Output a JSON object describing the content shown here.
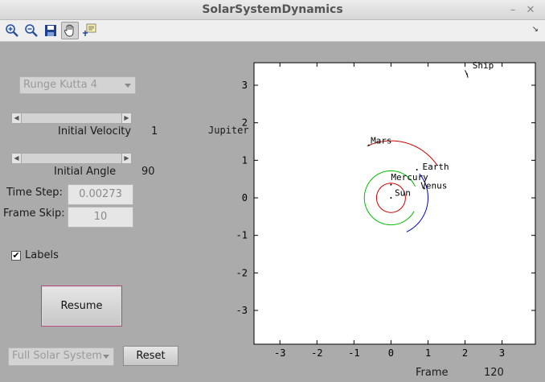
{
  "window": {
    "title": "SolarSystemDynamics",
    "minimize": "–",
    "close": "✕"
  },
  "toolbar": {
    "tools": [
      {
        "name": "zoom-in-icon"
      },
      {
        "name": "zoom-out-icon"
      },
      {
        "name": "save-icon"
      },
      {
        "name": "pan-hand-icon",
        "active": true
      },
      {
        "name": "data-cursor-icon"
      }
    ],
    "corner": "↘"
  },
  "controls": {
    "integrator": "Runge Kutta 4",
    "velocity_label": "Initial Velocity",
    "velocity_value": "1",
    "angle_label": "Initial Angle",
    "angle_value": "90",
    "timestep_label": "Time Step:",
    "timestep_value": "0.00273",
    "frameskip_label": "Frame Skip:",
    "frameskip_value": "10",
    "labels_label": "Labels",
    "labels_checked": true,
    "resume_label": "Resume",
    "system": "Full Solar System",
    "reset_label": "Reset"
  },
  "plot": {
    "outside_label": "Jupiter",
    "frame_label": "Frame",
    "frame_value": "120",
    "xlim": [
      -3.7,
      3.9
    ],
    "ylim": [
      -3.9,
      3.6
    ],
    "xticks": [
      -3,
      -2,
      -1,
      0,
      1,
      2,
      3
    ],
    "yticks": [
      -3,
      -2,
      -1,
      0,
      1,
      2,
      3
    ],
    "bodies": [
      {
        "label": "Sun",
        "x": 0.0,
        "y": 0.0,
        "label_dx": 0.1,
        "label_dy": 0.05
      },
      {
        "label": "Mercury",
        "x": 0.0,
        "y": 0.35,
        "label_dx": 0.0,
        "label_dy": 0.12
      },
      {
        "label": "Venus",
        "x": 0.9,
        "y": 0.25,
        "label_dx": -0.1,
        "label_dy": 0.0
      },
      {
        "label": "Earth",
        "x": 0.7,
        "y": 0.75,
        "label_dx": 0.15,
        "label_dy": 0.0
      },
      {
        "label": "Mars",
        "x": -0.6,
        "y": 1.4,
        "label_dx": 0.05,
        "label_dy": 0.05
      },
      {
        "label": "Ship",
        "x": 2.05,
        "y": 3.3,
        "label_dx": 0.15,
        "label_dy": 0.15
      }
    ],
    "trails": [
      {
        "name": "mercury",
        "color": "#cc0000",
        "cx": 0,
        "cy": 0,
        "r": 0.39,
        "start": 0,
        "end": 360
      },
      {
        "name": "venus",
        "color": "#00bb00",
        "cx": 0,
        "cy": 0,
        "r": 0.72,
        "start": 25,
        "end": 330
      },
      {
        "name": "earth",
        "color": "#0000cc",
        "cx": 0,
        "cy": 0,
        "r": 1.0,
        "start": -65,
        "end": 40
      },
      {
        "name": "mars",
        "color": "#cc0000",
        "cx": 0,
        "cy": 0,
        "r": 1.52,
        "start": 35,
        "end": 115
      },
      {
        "name": "ship",
        "color": "#000000",
        "points": [
          [
            2.0,
            3.4
          ],
          [
            2.05,
            3.3
          ],
          [
            2.08,
            3.2
          ]
        ]
      }
    ]
  }
}
